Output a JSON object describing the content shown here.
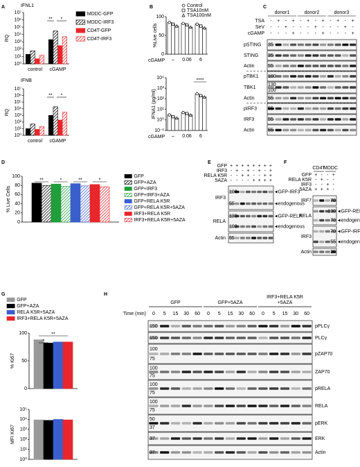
{
  "panel_labels": [
    "A",
    "B",
    "C",
    "D",
    "E",
    "F",
    "G",
    "H"
  ],
  "chart_data": [
    {
      "type": "bar",
      "title": "IFNL1",
      "ylabel": "RQ",
      "log_y": true,
      "categories": [
        "control",
        "cGAMP"
      ],
      "ylim": [
        1,
        10000000
      ],
      "yticks": [
        {
          "value": 1,
          "label": "10⁰"
        },
        {
          "value": 10,
          "label": "10¹"
        },
        {
          "value": 100,
          "label": "10²"
        },
        {
          "value": 1000,
          "label": "10³"
        },
        {
          "value": 10000,
          "label": "10⁴"
        },
        {
          "value": 100000,
          "label": "10⁵"
        },
        {
          "value": 1000000,
          "label": "10⁶"
        },
        {
          "value": 10000000,
          "label": "10⁷"
        }
      ],
      "series": [
        {
          "name": "MDDC-GFP",
          "color": "#000000",
          "values": [
            20,
            2000
          ]
        },
        {
          "name": "MDDC-IRF3",
          "color": "#000000",
          "pattern": "hatch",
          "values": [
            60,
            30000
          ]
        },
        {
          "name": "CD4T-GFP",
          "color": "#e8262b",
          "values": [
            5,
            300
          ]
        },
        {
          "name": "CD4T-IRF3",
          "color": "#e8262b",
          "pattern": "hatch",
          "values": [
            15,
            5000
          ]
        }
      ],
      "annotations": [
        "**",
        "*"
      ]
    },
    {
      "type": "bar",
      "title": "IFNB",
      "ylabel": "RQ",
      "log_y": true,
      "categories": [
        "control",
        "cGAMP"
      ],
      "ylim": [
        1,
        10000000
      ],
      "yticks": [
        {
          "value": 1,
          "label": "10⁰"
        },
        {
          "value": 10,
          "label": "10¹"
        },
        {
          "value": 100,
          "label": "10²"
        },
        {
          "value": 1000,
          "label": "10³"
        },
        {
          "value": 10000,
          "label": "10⁴"
        },
        {
          "value": 100000,
          "label": "10⁵"
        },
        {
          "value": 1000000,
          "label": "10⁶"
        },
        {
          "value": 10000000,
          "label": "10⁷"
        }
      ],
      "series": [
        {
          "color": "#000000",
          "values": [
            10,
            1000
          ]
        },
        {
          "color": "#000000",
          "pattern": "hatch",
          "values": [
            50,
            20000
          ]
        },
        {
          "color": "#e8262b",
          "values": [
            8,
            200
          ]
        },
        {
          "color": "#e8262b",
          "pattern": "hatch",
          "values": [
            20,
            3000
          ]
        }
      ],
      "annotations": [
        "**",
        "*"
      ]
    },
    {
      "type": "bar",
      "ylabel": "%Live cells",
      "xlabel": "cGAMP",
      "categories": [
        "–",
        "0.06",
        "6"
      ],
      "ylim": [
        0,
        100
      ],
      "yticks": [
        0,
        50,
        100
      ],
      "series": [
        {
          "name": "Control",
          "color": "#000000",
          "bar_fill": "#ffffff",
          "marker": "circle",
          "values": [
            85,
            82,
            80
          ]
        },
        {
          "name": "TSA10nM",
          "color": "#000000",
          "bar_fill": "#ffffff",
          "marker": "square",
          "values": [
            80,
            78,
            75
          ]
        },
        {
          "name": "TSA100nM",
          "color": "#000000",
          "bar_fill": "#ffffff",
          "marker": "triangle",
          "values": [
            75,
            72,
            70
          ]
        }
      ]
    },
    {
      "type": "bar",
      "ylabel": "IFNA1 (pg/ml)",
      "xlabel": "cGAMP",
      "log_y": true,
      "categories": [
        "–",
        "0.06",
        "6"
      ],
      "ylim": [
        0.1,
        10000
      ],
      "yticks": [
        {
          "value": 0.1,
          "label": "10⁻¹"
        },
        {
          "value": 1,
          "label": "10⁰"
        },
        {
          "value": 10,
          "label": "10¹"
        },
        {
          "value": 100,
          "label": "10²"
        },
        {
          "value": 1000,
          "label": "10³"
        },
        {
          "value": 10000,
          "label": "10⁴"
        }
      ],
      "series": [
        {
          "color": "#000000",
          "bar_fill": "#ffffff",
          "marker": "circle",
          "values": [
            3,
            5,
            300
          ]
        },
        {
          "color": "#000000",
          "bar_fill": "#ffffff",
          "marker": "square",
          "values": [
            2,
            4,
            200
          ]
        },
        {
          "color": "#000000",
          "bar_fill": "#ffffff",
          "marker": "triangle",
          "values": [
            1.5,
            3,
            150
          ]
        }
      ],
      "annotations": [
        "****"
      ]
    },
    {
      "type": "bar",
      "ylabel": "% Live Cells",
      "categories": [
        null
      ],
      "ylim": [
        0,
        100
      ],
      "yticks": [
        0,
        20,
        40,
        60,
        80,
        100
      ],
      "series": [
        {
          "name": "GFP",
          "color": "#000000",
          "values": [
            85
          ]
        },
        {
          "name": "GFP+AZA",
          "color": "#000000",
          "pattern": "hatch",
          "values": [
            80
          ]
        },
        {
          "name": "GFP+IRF3",
          "color": "#1f9e3a",
          "values": [
            83
          ]
        },
        {
          "name": "GFP+IRF3+AZA",
          "color": "#1f9e3a",
          "pattern": "hatch",
          "values": [
            78
          ]
        },
        {
          "name": "GFP+RELA K5R",
          "color": "#3a5fcd",
          "values": [
            84
          ]
        },
        {
          "name": "GFP+RELA K5R+5AZA",
          "color": "#3a5fcd",
          "pattern": "hatch",
          "values": [
            79
          ]
        },
        {
          "name": "IRF3+RELA K5R",
          "color": "#e8262b",
          "values": [
            82
          ]
        },
        {
          "name": "IRF3+RELA K5R+5AZA",
          "color": "#e8262b",
          "pattern": "hatch",
          "values": [
            77
          ]
        }
      ],
      "annotations": [
        "**",
        "*",
        "**",
        "*"
      ]
    },
    {
      "type": "bar",
      "ylabel": "% Ki67",
      "categories": [
        null
      ],
      "ylim": [
        0,
        100
      ],
      "yticks": [
        0,
        50,
        100
      ],
      "series": [
        {
          "name": "GFP",
          "color": "#999999",
          "values": [
            88
          ]
        },
        {
          "name": "GFP+AZA",
          "color": "#000000",
          "values": [
            82
          ]
        },
        {
          "name": "RELA K5R+5AZA",
          "color": "#3a5fcd",
          "values": [
            84
          ]
        },
        {
          "name": "IRF3+RELA K5R+5AZA",
          "color": "#e8262b",
          "values": [
            84
          ]
        }
      ],
      "annotations": [
        "*",
        "**"
      ]
    },
    {
      "type": "bar",
      "ylabel": "MFI Ki67",
      "log_y": true,
      "categories": [
        null
      ],
      "ylim": [
        1,
        100000
      ],
      "yticks": [
        {
          "value": 1,
          "label": "10⁰"
        },
        {
          "value": 10,
          "label": "10¹"
        },
        {
          "value": 100,
          "label": "10²"
        },
        {
          "value": 1000,
          "label": "10³"
        },
        {
          "value": 10000,
          "label": "10⁴"
        },
        {
          "value": 100000,
          "label": "10⁵"
        }
      ],
      "series": [
        {
          "color": "#999999",
          "values": [
            9000
          ]
        },
        {
          "color": "#000000",
          "values": [
            8000
          ]
        },
        {
          "color": "#3a5fcd",
          "values": [
            10000
          ]
        },
        {
          "color": "#e8262b",
          "values": [
            9000
          ]
        }
      ]
    }
  ],
  "blots": {
    "C": {
      "columns": [
        "donor1",
        "donor2",
        "donor3"
      ],
      "conditions": [
        {
          "name": "TSA",
          "signs": [
            "-",
            "+",
            "-",
            "+",
            "-",
            "+",
            "-",
            "+",
            "-",
            "+",
            "-",
            "+"
          ]
        },
        {
          "name": "SeV",
          "signs": [
            "-",
            "-",
            "+",
            "-",
            "-",
            "-",
            "+",
            "-",
            "-",
            "-",
            "+",
            "-"
          ]
        },
        {
          "name": "cGAMP",
          "signs": [
            "-",
            "-",
            "-",
            "+",
            "-",
            "-",
            "-",
            "+",
            "-",
            "-",
            "-",
            "+"
          ]
        }
      ],
      "rows": [
        {
          "label": "pSTING",
          "markers": [
            35
          ]
        },
        {
          "label": "STING",
          "markers": [
            35
          ]
        },
        {
          "label": "Actin",
          "markers": [
            55
          ]
        },
        {
          "label": "pTBK1",
          "markers": [
            100
          ]
        },
        {
          "label": "TBK1",
          "markers": [
            130,
            100
          ]
        },
        {
          "label": "Actin",
          "markers": [
            55
          ]
        },
        {
          "label": "pIRF3",
          "markers": [
            55
          ]
        },
        {
          "label": "IRF3",
          "markers": [
            55
          ]
        },
        {
          "label": "Actin",
          "markers": [
            55
          ]
        }
      ]
    },
    "E": {
      "conditions": [
        {
          "name": "GFP",
          "signs": [
            "+",
            "+",
            "+",
            "+",
            "+",
            "+",
            "+",
            "+"
          ]
        },
        {
          "name": "IRF3",
          "signs": [
            "-",
            "+",
            "-",
            "+",
            "-",
            "+",
            "-",
            "+"
          ]
        },
        {
          "name": "RELA K5R",
          "signs": [
            "-",
            "-",
            "+",
            "+",
            "-",
            "-",
            "+",
            "+"
          ]
        },
        {
          "name": "5AZA",
          "signs": [
            "-",
            "-",
            "-",
            "-",
            "+",
            "+",
            "+",
            "+"
          ]
        }
      ],
      "rows": [
        {
          "label": "IRF3",
          "markers": [
            100,
            55
          ],
          "arrows": [
            "GFP-IRF3",
            "endogenous"
          ]
        },
        {
          "label": "RELA",
          "markers": [
            130,
            100
          ],
          "arrows": [
            "GFP-RELA",
            "endogenous"
          ]
        },
        {
          "label": "Actin",
          "markers": [
            55
          ]
        }
      ]
    },
    "F": {
      "columns": [
        "CD4T",
        "MDDC"
      ],
      "conditions": [
        {
          "name": "GFP",
          "signs": [
            "+",
            "-",
            "-",
            "+"
          ]
        },
        {
          "name": "RELA K5R",
          "signs": [
            "-",
            "+",
            "-",
            "-"
          ]
        },
        {
          "name": "IRF3",
          "signs": [
            "-",
            "-",
            "+",
            "-"
          ]
        },
        {
          "name": "5AZA",
          "signs": [
            "+",
            "+",
            "+",
            "-"
          ]
        }
      ],
      "rows": [
        {
          "label": "IRF7",
          "markers": [
            70
          ]
        },
        {
          "label": "RELA",
          "markers": [
            100,
            70
          ],
          "arrows": [
            "GFP-RELA",
            "endogenous"
          ]
        },
        {
          "label": "IRF3",
          "markers": [
            70,
            55
          ],
          "arrows": [
            "GFP-IRF3",
            "endogenous"
          ]
        },
        {
          "label": "Actin",
          "markers": [
            35
          ]
        }
      ]
    },
    "H": {
      "groups": [
        [
          "GFP"
        ],
        [
          "GFP+5AZA"
        ],
        [
          "IRF3+RELA K5R",
          "+5AZA"
        ]
      ],
      "time_label": "Time (min)",
      "times": [
        0,
        5,
        15,
        30,
        60,
        0,
        5,
        15,
        30,
        60,
        0,
        5,
        15,
        30,
        60
      ],
      "rows": [
        {
          "label": "pPLCγ",
          "markers": [
            150
          ]
        },
        {
          "label": "PLCγ",
          "markers": [
            150
          ]
        },
        {
          "label": "pZAP70",
          "markers": [
            100,
            75
          ]
        },
        {
          "label": "ZAP70",
          "markers": [
            100,
            75
          ]
        },
        {
          "label": "pRELA",
          "markers": [
            100,
            75
          ]
        },
        {
          "label": "RELA",
          "markers": [
            100,
            75
          ]
        },
        {
          "label": "pERK",
          "markers": [
            50,
            37
          ]
        },
        {
          "label": "ERK",
          "markers": [
            37
          ]
        },
        {
          "label": "Actin",
          "markers": [
            37
          ]
        }
      ]
    }
  }
}
